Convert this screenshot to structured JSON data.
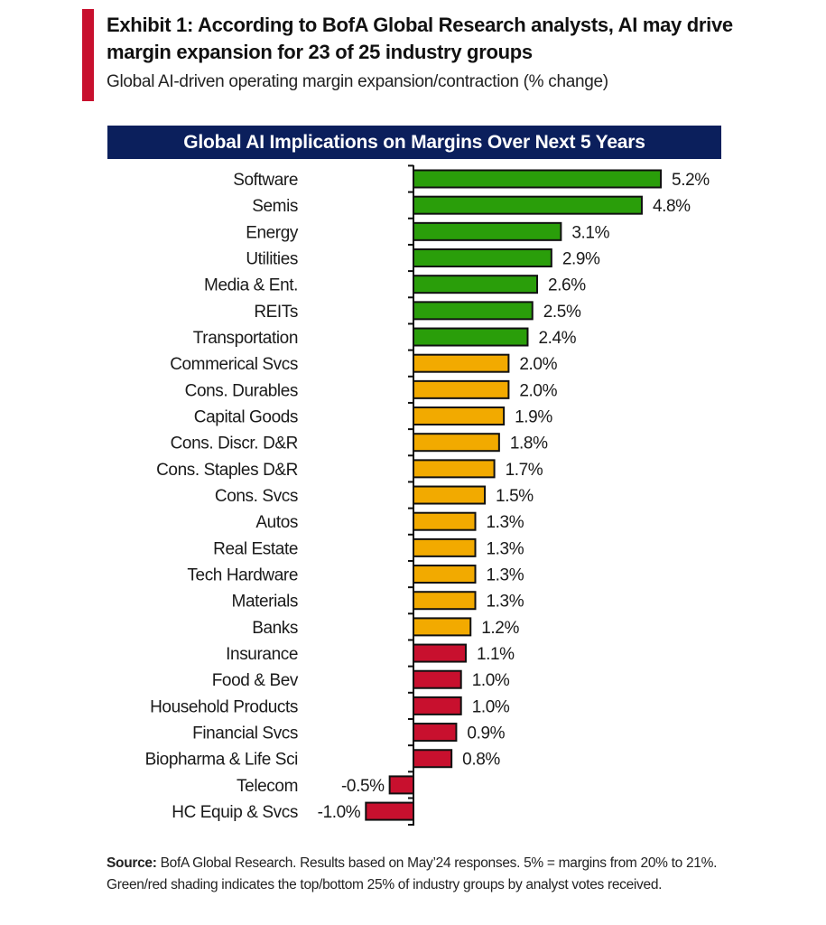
{
  "header": {
    "title": "Exhibit 1: According to BofA Global Research analysts, AI may drive margin expansion for 23 of 25 industry groups",
    "subtitle": "Global AI-driven operating margin expansion/contraction (% change)",
    "accent_color": "#c8102e"
  },
  "footer": {
    "source_label": "Source:",
    "source_text": " BofA Global Research. Results based on May’24 responses. 5% = margins from 20% to 21%. Green/red shading indicates the top/bottom 25% of industry groups by analyst votes received."
  },
  "chart_data": {
    "type": "bar",
    "orientation": "horizontal",
    "title": "Global AI Implications on Margins Over Next 5 Years",
    "xlabel": "",
    "ylabel": "",
    "value_suffix": "%",
    "grid": false,
    "legend": "none",
    "xlim": [
      -1.0,
      6.5
    ],
    "colors": {
      "top": "#2a9e0a",
      "middle": "#f2aa00",
      "bottom": "#c8102e",
      "banner": "#0b1f5c"
    },
    "categories": [
      "Software",
      "Semis",
      "Energy",
      "Utilities",
      "Media & Ent.",
      "REITs",
      "Transportation",
      "Commerical Svcs",
      "Cons. Durables",
      "Capital Goods",
      "Cons. Discr. D&R",
      "Cons. Staples D&R",
      "Cons. Svcs",
      "Autos",
      "Real Estate",
      "Tech Hardware",
      "Materials",
      "Banks",
      "Insurance",
      "Food & Bev",
      "Household Products",
      "Financial Svcs",
      "Biopharma & Life Sci",
      "Telecom",
      "HC Equip & Svcs"
    ],
    "values": [
      5.2,
      4.8,
      3.1,
      2.9,
      2.6,
      2.5,
      2.4,
      2.0,
      2.0,
      1.9,
      1.8,
      1.7,
      1.5,
      1.3,
      1.3,
      1.3,
      1.3,
      1.2,
      1.1,
      1.0,
      1.0,
      0.9,
      0.8,
      -0.5,
      -1.0
    ],
    "labels": [
      "5.2%",
      "4.8%",
      "3.1%",
      "2.9%",
      "2.6%",
      "2.5%",
      "2.4%",
      "2.0%",
      "2.0%",
      "1.9%",
      "1.8%",
      "1.7%",
      "1.5%",
      "1.3%",
      "1.3%",
      "1.3%",
      "1.3%",
      "1.2%",
      "1.1%",
      "1.0%",
      "1.0%",
      "0.9%",
      "0.8%",
      "-0.5%",
      "-1.0%"
    ],
    "groups": [
      "top",
      "top",
      "top",
      "top",
      "top",
      "top",
      "top",
      "middle",
      "middle",
      "middle",
      "middle",
      "middle",
      "middle",
      "middle",
      "middle",
      "middle",
      "middle",
      "middle",
      "bottom",
      "bottom",
      "bottom",
      "bottom",
      "bottom",
      "bottom",
      "bottom"
    ]
  }
}
